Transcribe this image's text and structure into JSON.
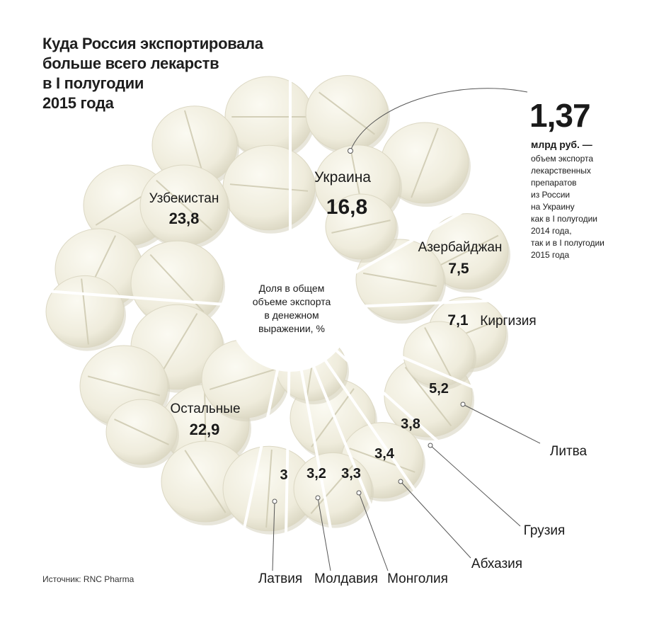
{
  "title": "Куда Россия экспортировала\nбольше всего лекарств\nв I полугодии\n2015 года",
  "callout": {
    "value": "1,37",
    "unit": "млрд руб. —",
    "description": "объем экспорта\nлекарственных\nпрепаратов\nиз России\nна Украину\nкак в I полугодии\n2014 года,\nтак и в I полугодии\n2015 года"
  },
  "center_label": "Доля в общем\nобъеме экспорта\nв денежном\nвыражении, %",
  "source": "Источник: RNC Pharma",
  "colors": {
    "pill": "#efecdc",
    "pill_shadow": "#d6d2bd",
    "divider": "#ffffff",
    "text": "#1a1a1a",
    "leader": "#555555"
  },
  "chart_data": {
    "type": "pie",
    "unit": "%",
    "series": [
      {
        "name": "Украина",
        "label": "16,8",
        "value": 16.8
      },
      {
        "name": "Азербайджан",
        "label": "7,5",
        "value": 7.5
      },
      {
        "name": "Киргизия",
        "label": "7,1",
        "value": 7.1
      },
      {
        "name": "Литва",
        "label": "5,2",
        "value": 5.2
      },
      {
        "name": "Грузия",
        "label": "3,8",
        "value": 3.8
      },
      {
        "name": "Абхазия",
        "label": "3,4",
        "value": 3.4
      },
      {
        "name": "Монголия",
        "label": "3,3",
        "value": 3.3
      },
      {
        "name": "Молдавия",
        "label": "3,2",
        "value": 3.2
      },
      {
        "name": "Латвия",
        "label": "3",
        "value": 3.0
      },
      {
        "name": "Остальные",
        "label": "22,9",
        "value": 22.9
      },
      {
        "name": "Узбекистан",
        "label": "23,8",
        "value": 23.8
      }
    ]
  }
}
